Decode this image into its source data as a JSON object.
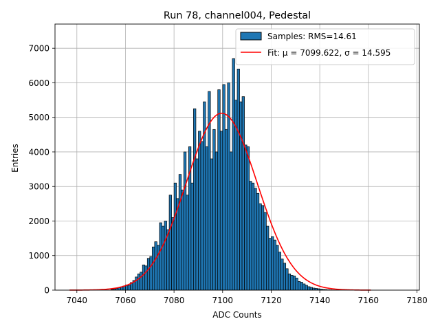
{
  "chart_data": {
    "type": "bar",
    "title": "Run 78, channel004, Pedestal",
    "xlabel": "ADC Counts",
    "ylabel": "Entries",
    "xlim": [
      7031,
      7181
    ],
    "ylim": [
      0,
      7700
    ],
    "xticks": [
      7040,
      7060,
      7080,
      7100,
      7120,
      7140,
      7160,
      7180
    ],
    "yticks": [
      0,
      1000,
      2000,
      3000,
      4000,
      5000,
      6000,
      7000
    ],
    "grid": true,
    "legend_position": "top-right",
    "bar_color": "#1f77b4",
    "bar_edge_color": "#000000",
    "fit_color": "#ff0000",
    "series": [
      {
        "name": "Samples: RMS=14.61",
        "type": "histogram",
        "x": [
          7054,
          7055,
          7056,
          7057,
          7058,
          7059,
          7060,
          7061,
          7062,
          7063,
          7064,
          7065,
          7066,
          7067,
          7068,
          7069,
          7070,
          7071,
          7072,
          7073,
          7074,
          7075,
          7076,
          7077,
          7078,
          7079,
          7080,
          7081,
          7082,
          7083,
          7084,
          7085,
          7086,
          7087,
          7088,
          7089,
          7090,
          7091,
          7092,
          7093,
          7094,
          7095,
          7096,
          7097,
          7098,
          7099,
          7100,
          7101,
          7102,
          7103,
          7104,
          7105,
          7106,
          7107,
          7108,
          7109,
          7110,
          7111,
          7112,
          7113,
          7114,
          7115,
          7116,
          7117,
          7118,
          7119,
          7120,
          7121,
          7122,
          7123,
          7124,
          7125,
          7126,
          7127,
          7128,
          7129,
          7130,
          7131,
          7132,
          7133,
          7134,
          7135,
          7136,
          7137,
          7138,
          7139,
          7140,
          7141,
          7142,
          7143,
          7144,
          7145,
          7146,
          7147
        ],
        "values": [
          20,
          30,
          50,
          70,
          90,
          120,
          150,
          140,
          220,
          280,
          380,
          470,
          520,
          730,
          700,
          920,
          970,
          1250,
          1400,
          1300,
          1950,
          1850,
          2000,
          1750,
          2750,
          2100,
          3100,
          2650,
          3350,
          2900,
          4000,
          2750,
          4150,
          3100,
          5250,
          3800,
          4600,
          4300,
          5450,
          4150,
          5750,
          3800,
          4650,
          4000,
          5800,
          4600,
          5950,
          4650,
          6000,
          4000,
          6700,
          5500,
          6400,
          5450,
          5600,
          4200,
          4150,
          3150,
          3100,
          2950,
          2800,
          2500,
          2450,
          2250,
          1850,
          1500,
          1550,
          1450,
          1300,
          1100,
          900,
          780,
          620,
          470,
          430,
          410,
          350,
          250,
          230,
          180,
          140,
          100,
          80,
          60,
          50,
          40,
          30,
          20,
          15,
          10,
          8,
          5,
          3,
          2
        ]
      },
      {
        "name": "Fit: μ = 7099.622, σ = 14.595",
        "type": "gaussian",
        "mu": 7099.622,
        "sigma": 14.595,
        "amplitude": 5120,
        "x_range": [
          7037,
          7161
        ]
      }
    ]
  }
}
